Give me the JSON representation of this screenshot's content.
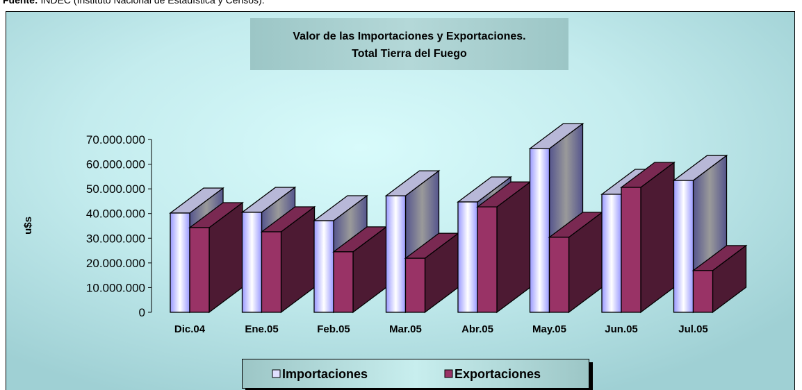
{
  "note": {
    "label": "Fuente:",
    "text": "INDEC (Instituto Nacional de Estadística y Censos)."
  },
  "chart_data": {
    "type": "bar3d",
    "title": [
      "Valor de las Importaciones y Exportaciones.",
      "Total Tierra del Fuego"
    ],
    "y_label": "u$s",
    "categories": [
      "Dic.04",
      "Ene.05",
      "Feb.05",
      "Mar.05",
      "Abr.05",
      "May.05",
      "Jun.05",
      "Jul.05"
    ],
    "series": [
      {
        "name": "Importaciones",
        "color": "#9999ff",
        "values": [
          40200000,
          40500000,
          37100000,
          47200000,
          44700000,
          66300000,
          47800000,
          53400000
        ]
      },
      {
        "name": "Exportaciones",
        "color": "#993366",
        "values": [
          34300000,
          32600000,
          24500000,
          21900000,
          42700000,
          30400000,
          50600000,
          16900000
        ]
      }
    ],
    "ylim": [
      0,
      70000000
    ],
    "yticks": [
      0,
      {
        "value": 10000000,
        "label": "10.000.000"
      },
      {
        "value": 20000000,
        "label": "20.000.000"
      },
      {
        "value": 30000000,
        "label": "30.000.000"
      },
      {
        "value": 40000000,
        "label": "40.000.000"
      },
      {
        "value": 50000000,
        "label": "50.000.000"
      },
      {
        "value": 60000000,
        "label": "60.000.000"
      },
      {
        "value": 70000000,
        "label": "70.000.000"
      }
    ],
    "legend": "bottom"
  }
}
